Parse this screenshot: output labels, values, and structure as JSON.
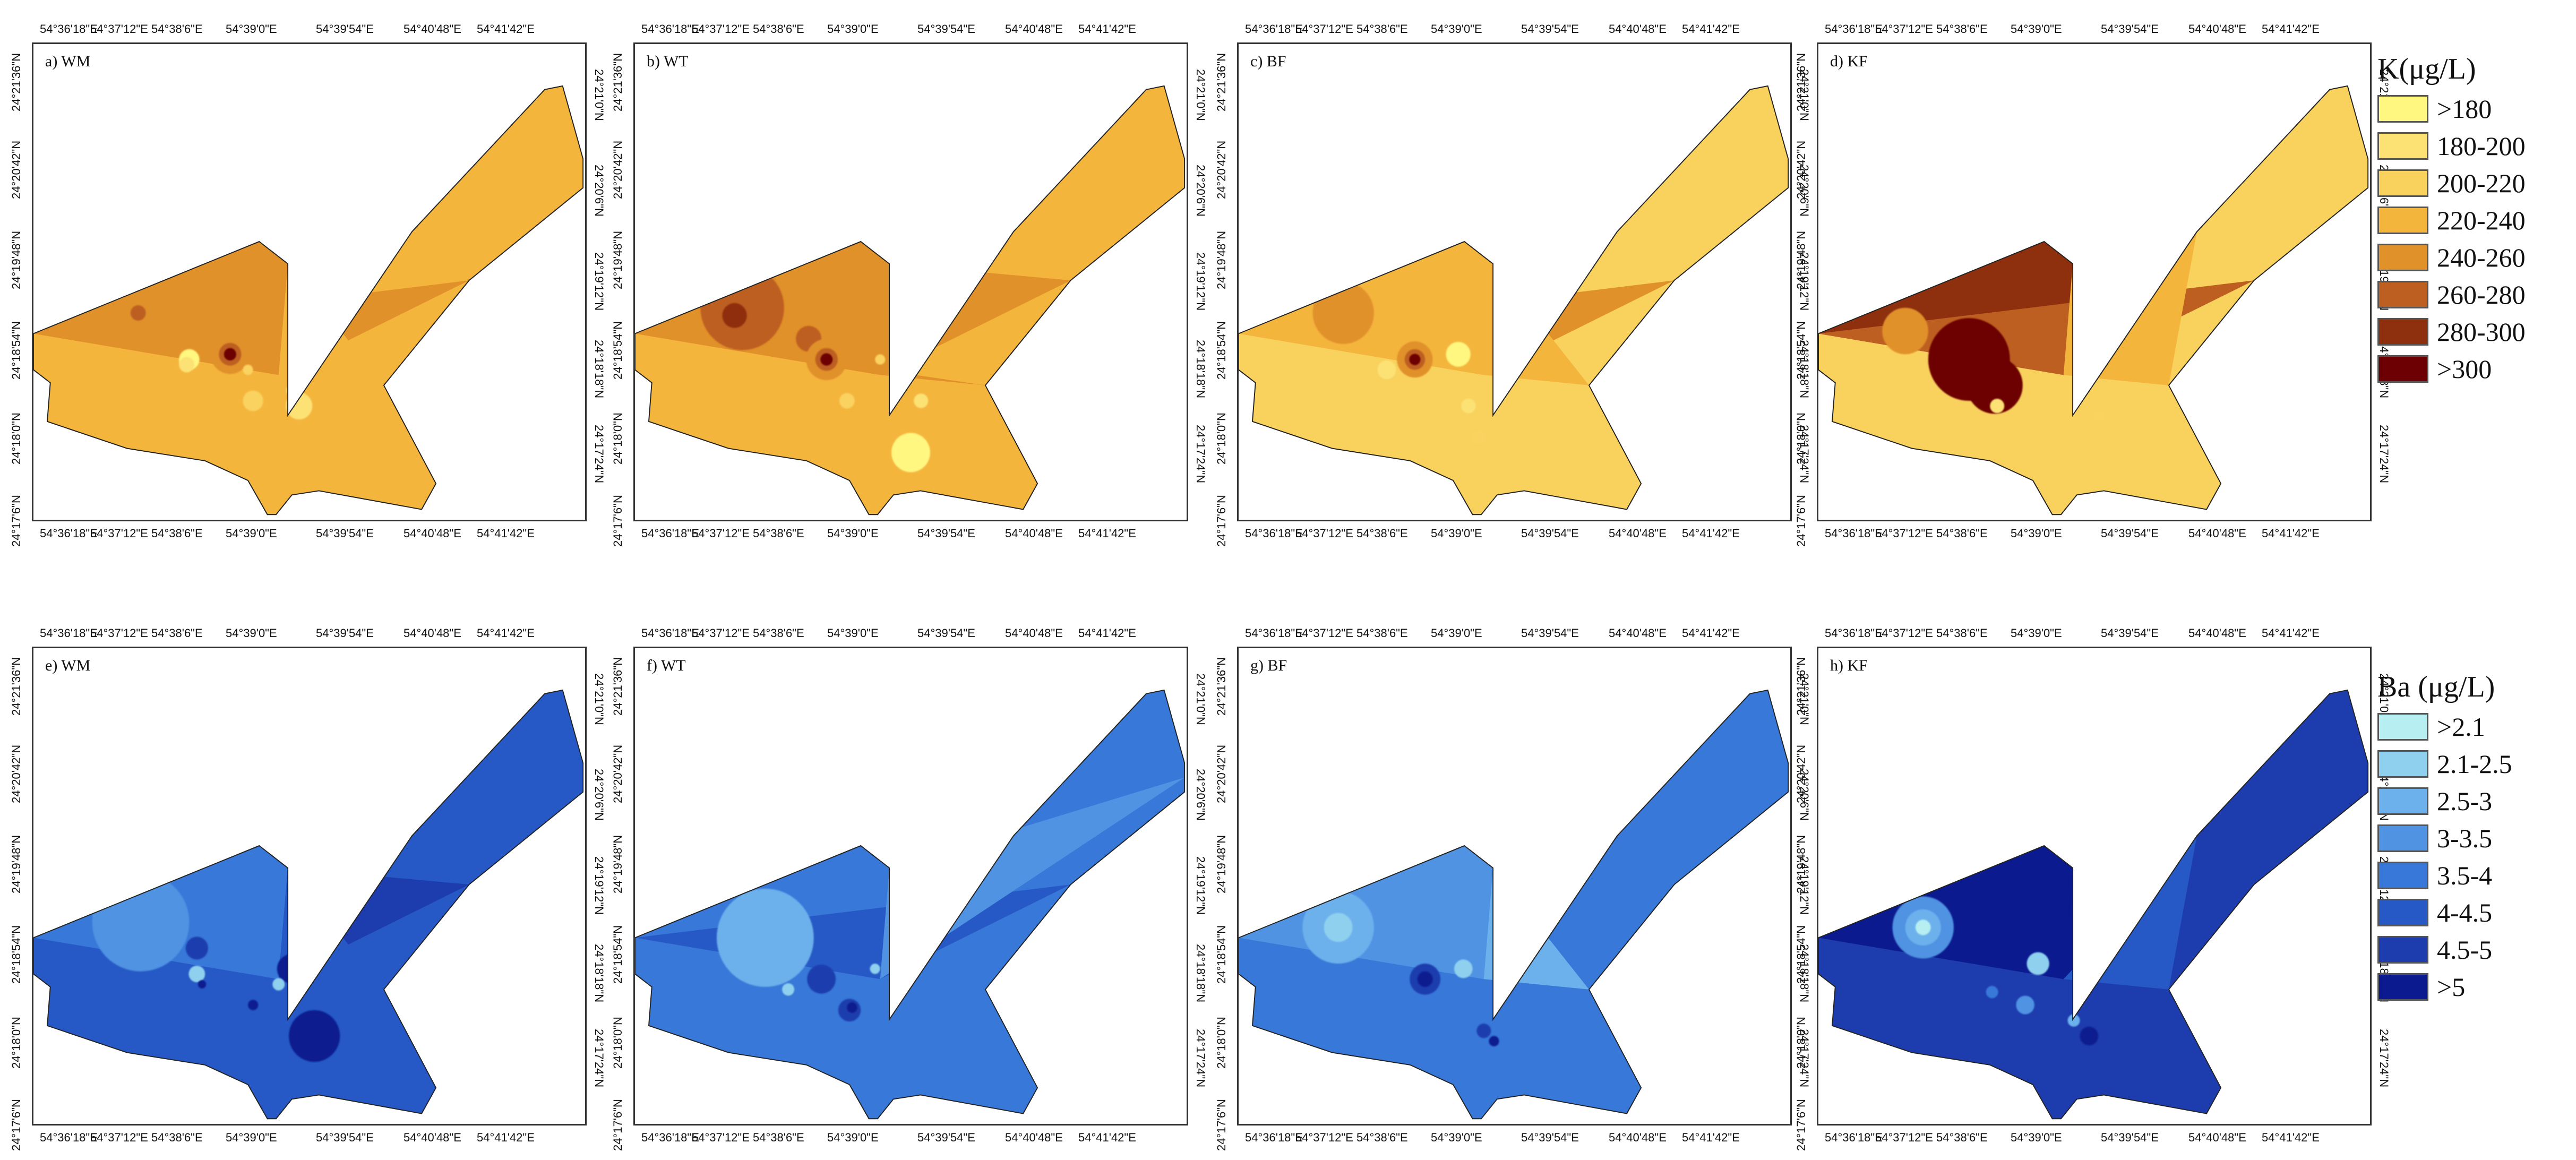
{
  "colors": {
    "K": [
      "#FFF77F",
      "#FCE275",
      "#F9D25E",
      "#F4B53D",
      "#E19129",
      "#BE5F22",
      "#8E2F0E",
      "#6D0002"
    ],
    "Ba": [
      "#B7EEF2",
      "#8FD0EE",
      "#6CB1EC",
      "#4F93E2",
      "#3778D8",
      "#2659C6",
      "#1D3CAE",
      "#0B1A8E"
    ]
  },
  "axes": {
    "top_x": [
      "54°36'18\"E",
      "54°37'12\"E",
      "54°38'6\"E",
      "54°39'0\"E",
      "54°39'54\"E",
      "54°40'48\"E",
      "54°41'42\"E"
    ],
    "bottom_x": [
      "54°36'18\"E",
      "54°37'12\"E",
      "54°38'6\"E",
      "54°39'0\"E",
      "54°39'54\"E",
      "54°40'48\"E",
      "54°41'42\"E"
    ],
    "left_y": [
      "24°21'36\"N",
      "24°20'42\"N",
      "24°19'48\"N",
      "24°18'54\"N",
      "24°18'0\"N",
      "24°17'6\"N"
    ],
    "right_y": [
      "24°21'0\"N",
      "24°20'6\"N",
      "24°19'12\"N",
      "24°18'18\"N",
      "24°17'24\"N"
    ]
  },
  "panels": [
    {
      "id": "a",
      "label": "a) WM",
      "scheme": "K",
      "base": 3,
      "bands": [
        [
          0,
          3,
          4
        ],
        [
          0,
          5,
          4
        ],
        [
          1,
          6,
          3
        ]
      ],
      "blobs": [
        [
          205,
          520,
          55,
          4
        ],
        [
          205,
          520,
          15,
          5
        ],
        [
          385,
          600,
          38,
          4
        ],
        [
          385,
          600,
          22,
          5
        ],
        [
          385,
          600,
          12,
          7
        ],
        [
          305,
          610,
          20,
          0
        ],
        [
          300,
          620,
          15,
          1
        ],
        [
          520,
          700,
          26,
          1
        ],
        [
          430,
          690,
          20,
          2
        ],
        [
          505,
          670,
          10,
          1
        ],
        [
          420,
          630,
          10,
          2
        ]
      ]
    },
    {
      "id": "b",
      "label": "b) WT",
      "scheme": "K",
      "base": 3,
      "bands": [
        [
          0,
          3,
          4
        ],
        [
          1,
          5,
          4
        ],
        [
          0,
          6,
          4
        ],
        [
          2,
          3,
          5
        ]
      ],
      "blobs": [
        [
          210,
          510,
          82,
          5
        ],
        [
          195,
          525,
          24,
          6
        ],
        [
          340,
          570,
          25,
          5
        ],
        [
          375,
          610,
          40,
          4
        ],
        [
          375,
          610,
          22,
          5
        ],
        [
          375,
          610,
          12,
          7
        ],
        [
          540,
          790,
          38,
          0
        ],
        [
          415,
          690,
          15,
          2
        ],
        [
          480,
          610,
          10,
          2
        ],
        [
          560,
          690,
          14,
          1
        ]
      ]
    },
    {
      "id": "c",
      "label": "c) BF",
      "scheme": "K",
      "base": 2,
      "bands": [
        [
          0,
          5,
          4
        ],
        [
          1,
          6,
          3
        ],
        [
          0,
          3,
          3
        ]
      ],
      "blobs": [
        [
          205,
          520,
          60,
          4
        ],
        [
          345,
          610,
          35,
          4
        ],
        [
          345,
          610,
          20,
          5
        ],
        [
          345,
          610,
          11,
          7
        ],
        [
          430,
          600,
          24,
          0
        ],
        [
          290,
          630,
          18,
          1
        ],
        [
          450,
          700,
          14,
          1
        ],
        [
          470,
          760,
          15,
          2
        ]
      ]
    },
    {
      "id": "d",
      "label": "d) KF",
      "scheme": "K",
      "base": 2,
      "bands": [
        [
          0,
          3,
          6
        ],
        [
          0,
          5,
          5
        ],
        [
          2,
          3,
          4
        ],
        [
          1,
          6,
          3
        ],
        [
          2,
          6,
          3
        ]
      ],
      "blobs": [
        [
          295,
          610,
          80,
          7
        ],
        [
          345,
          660,
          55,
          7
        ],
        [
          170,
          555,
          45,
          4
        ],
        [
          350,
          700,
          14,
          1
        ],
        [
          550,
          720,
          12,
          2
        ]
      ]
    },
    {
      "id": "e",
      "label": "e) WM",
      "scheme": "Ba",
      "base": 5,
      "bands": [
        [
          0,
          3,
          4
        ],
        [
          1,
          3,
          6
        ],
        [
          1,
          5,
          6
        ],
        [
          2,
          3,
          4
        ],
        [
          1,
          6,
          5
        ]
      ],
      "blobs": [
        [
          210,
          530,
          95,
          3
        ],
        [
          320,
          580,
          22,
          6
        ],
        [
          505,
          620,
          28,
          7
        ],
        [
          550,
          750,
          50,
          7
        ],
        [
          320,
          630,
          16,
          1
        ],
        [
          480,
          650,
          12,
          1
        ],
        [
          330,
          650,
          8,
          7
        ],
        [
          430,
          690,
          10,
          7
        ]
      ]
    },
    {
      "id": "f",
      "label": "f) WT",
      "scheme": "Ba",
      "base": 4,
      "bands": [
        [
          1,
          6,
          4
        ],
        [
          0,
          5,
          5
        ],
        [
          2,
          3,
          5
        ],
        [
          1,
          4,
          3
        ]
      ],
      "blobs": [
        [
          255,
          560,
          95,
          2
        ],
        [
          365,
          640,
          28,
          6
        ],
        [
          420,
          700,
          22,
          6
        ],
        [
          425,
          695,
          10,
          7
        ],
        [
          300,
          660,
          12,
          1
        ],
        [
          470,
          620,
          10,
          1
        ]
      ]
    },
    {
      "id": "g",
      "label": "g) BF",
      "scheme": "Ba",
      "base": 4,
      "bands": [
        [
          0,
          3,
          3
        ],
        [
          1,
          6,
          2
        ],
        [
          2,
          3,
          3
        ]
      ],
      "blobs": [
        [
          195,
          540,
          70,
          2
        ],
        [
          195,
          540,
          28,
          1
        ],
        [
          365,
          640,
          30,
          6
        ],
        [
          365,
          640,
          15,
          7
        ],
        [
          440,
          620,
          18,
          1
        ],
        [
          480,
          740,
          14,
          6
        ],
        [
          500,
          760,
          10,
          7
        ]
      ]
    },
    {
      "id": "h",
      "label": "h) KF",
      "scheme": "Ba",
      "base": 6,
      "bands": [
        [
          0,
          3,
          7
        ],
        [
          1,
          3,
          7
        ],
        [
          2,
          6,
          5
        ],
        [
          2,
          3,
          4
        ]
      ],
      "blobs": [
        [
          205,
          540,
          60,
          3
        ],
        [
          205,
          540,
          35,
          2
        ],
        [
          205,
          540,
          15,
          0
        ],
        [
          430,
          610,
          22,
          1
        ],
        [
          405,
          690,
          18,
          3
        ],
        [
          530,
          750,
          18,
          7
        ],
        [
          500,
          720,
          12,
          2
        ],
        [
          340,
          665,
          12,
          4
        ]
      ]
    }
  ],
  "legends": {
    "K": {
      "title": "K(μg/L)",
      "items": [
        ">180",
        "180-200",
        "200-220",
        "220-240",
        "240-260",
        "260-280",
        "280-300",
        ">300"
      ]
    },
    "Ba": {
      "title": "Ba (μg/L)",
      "items": [
        ">2.1",
        "2.1-2.5",
        "2.5-3",
        "3-3.5",
        "3.5-4",
        "4-4.5",
        "4.5-5",
        ">5"
      ]
    }
  }
}
